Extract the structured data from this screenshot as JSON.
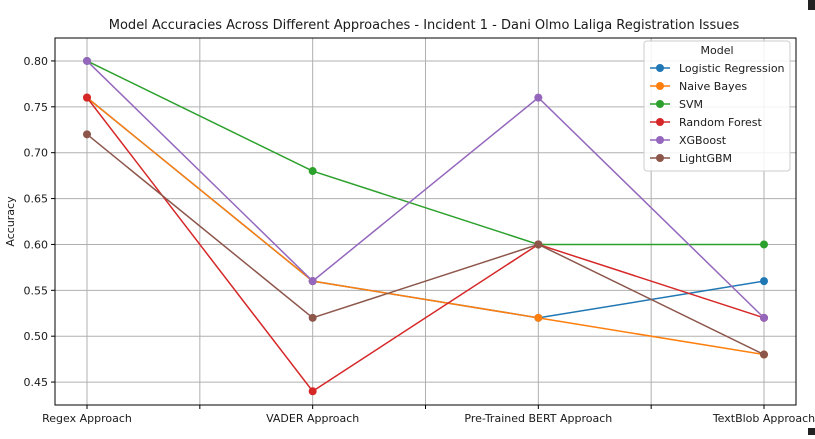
{
  "chart_data": {
    "type": "line",
    "title": "Model Accuracies Across Different Approaches - Incident 1 - Dani Olmo Laliga Registration Issues",
    "xlabel": "",
    "ylabel": "Accuracy",
    "categories": [
      "Regex Approach",
      "VADER Approach",
      "Pre-Trained BERT Approach",
      "TextBlob Approach"
    ],
    "ylim": [
      0.425,
      0.825
    ],
    "yticks": [
      "0.45",
      "0.50",
      "0.55",
      "0.60",
      "0.65",
      "0.70",
      "0.75",
      "0.80"
    ],
    "grid": true,
    "legend": {
      "title": "Model",
      "placement": "top-right"
    },
    "series": [
      {
        "name": "Logistic Regression",
        "color": "#1f77b4",
        "values": [
          0.76,
          0.56,
          0.52,
          0.56
        ]
      },
      {
        "name": "Naive Bayes",
        "color": "#ff7f0e",
        "values": [
          0.76,
          0.56,
          0.52,
          0.48
        ]
      },
      {
        "name": "SVM",
        "color": "#2ca02c",
        "values": [
          0.8,
          0.68,
          0.6,
          0.6
        ]
      },
      {
        "name": "Random Forest",
        "color": "#d62728",
        "values": [
          0.76,
          0.44,
          0.6,
          0.52
        ]
      },
      {
        "name": "XGBoost",
        "color": "#9467bd",
        "values": [
          0.8,
          0.56,
          0.76,
          0.52
        ]
      },
      {
        "name": "LightGBM",
        "color": "#8c564b",
        "values": [
          0.72,
          0.52,
          0.6,
          0.48
        ]
      }
    ]
  }
}
